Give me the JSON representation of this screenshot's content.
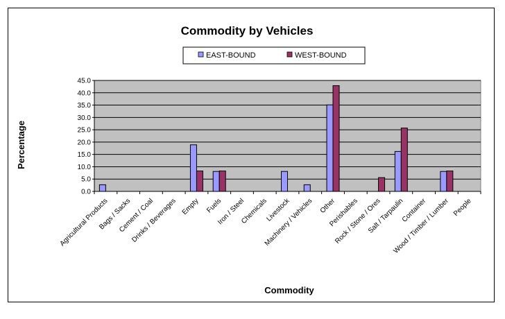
{
  "chart_data": {
    "type": "bar",
    "title": "Commodity by Vehicles",
    "xlabel": "Commodity",
    "ylabel": "Percentage",
    "ylim": [
      0,
      45
    ],
    "ytick_step": 5,
    "ytick_labels": [
      "0.0",
      "5.0",
      "10.0",
      "15.0",
      "20.0",
      "25.0",
      "30.0",
      "35.0",
      "40.0",
      "45.0"
    ],
    "grid": true,
    "legend_position": "top",
    "categories": [
      "Agricultural Products",
      "Bags / Sacks",
      "Cement / Coal",
      "Drinks / Beverages",
      "Empty",
      "Fuels",
      "Iron / Steel",
      "Chemicals",
      "Livestock",
      "Machinery / Vehicles",
      "Other",
      "Perishables",
      "Rock / Stone / Ores",
      "Salt / Tarpaulin",
      "Container",
      "Wood / Timber / Lumber",
      "People"
    ],
    "series": [
      {
        "name": "EAST-BOUND",
        "color": "#9999ff",
        "values": [
          2.7,
          0,
          0,
          0,
          18.9,
          8.1,
          0,
          0,
          8.1,
          2.7,
          35.1,
          0,
          0,
          16.2,
          0,
          8.1,
          0
        ]
      },
      {
        "name": "WEST-BOUND",
        "color": "#993366",
        "values": [
          0,
          0,
          0,
          0,
          8.3,
          8.3,
          0,
          0,
          0,
          0,
          42.9,
          0,
          5.6,
          25.7,
          0,
          8.3,
          0
        ]
      }
    ],
    "colors": {
      "plot_background": "#c0c0c0",
      "gridline": "#000000"
    }
  }
}
